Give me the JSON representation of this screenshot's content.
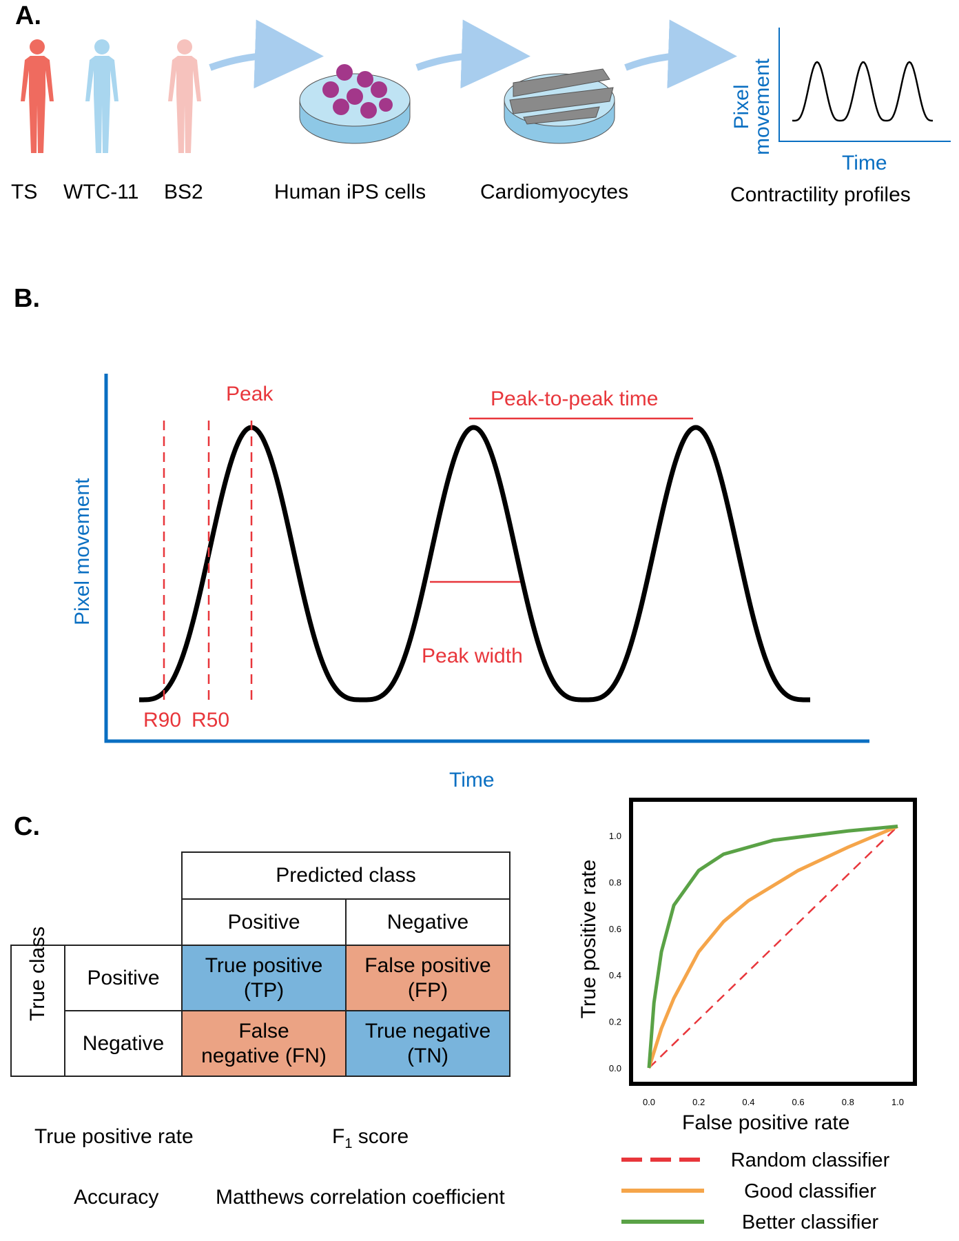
{
  "panelA": {
    "label": "A.",
    "donors": [
      "TS",
      "WTC-11",
      "BS2"
    ],
    "cells": "Human iPS cells",
    "cardio": "Cardiomyocytes",
    "profiles": "Contractility profiles",
    "mini_y": "Pixel movement",
    "mini_x": "Time"
  },
  "panelB": {
    "label": "B.",
    "ylabel": "Pixel movement",
    "xlabel": "Time",
    "peak": "Peak",
    "p2p": "Peak-to-peak time",
    "width": "Peak width",
    "r90": "R90",
    "r50": "R50"
  },
  "panelC": {
    "label": "C.",
    "table": {
      "predicted": "Predicted class",
      "true": "True class",
      "positive": "Positive",
      "negative": "Negative",
      "tp": [
        "True positive",
        "(TP)"
      ],
      "fp": [
        "False positive",
        "(FP)"
      ],
      "fn": [
        "False",
        "negative (FN)"
      ],
      "tn": [
        "True negative",
        "(TN)"
      ]
    },
    "metrics": {
      "tpr": "True positive rate",
      "f1": "F",
      "f1sub": "1",
      "f1rest": " score",
      "acc": "Accuracy",
      "mcc": "Matthews correlation coefficient"
    }
  },
  "chart_data": {
    "type": "line",
    "title": "",
    "xlabel": "False positive rate",
    "ylabel": "True positive rate",
    "xlim": [
      0,
      1
    ],
    "ylim": [
      0,
      1
    ],
    "xticks": [
      "0.0",
      "0.2",
      "0.4",
      "0.6",
      "0.8",
      "1.0"
    ],
    "yticks": [
      "0.0",
      "0.2",
      "0.4",
      "0.6",
      "0.8",
      "1.0"
    ],
    "series": [
      {
        "name": "Random classifier",
        "color": "#e8363b",
        "dash": true,
        "x": [
          0,
          1
        ],
        "y": [
          0,
          1.04
        ]
      },
      {
        "name": "Good classifier",
        "color": "#f5a54a",
        "x": [
          0,
          0.05,
          0.1,
          0.2,
          0.3,
          0.4,
          0.6,
          0.8,
          1.0
        ],
        "y": [
          0,
          0.17,
          0.3,
          0.5,
          0.63,
          0.72,
          0.85,
          0.95,
          1.04
        ]
      },
      {
        "name": "Better classifier",
        "color": "#5aa246",
        "x": [
          0,
          0.02,
          0.05,
          0.1,
          0.2,
          0.3,
          0.5,
          0.8,
          1.0
        ],
        "y": [
          0,
          0.28,
          0.5,
          0.7,
          0.85,
          0.92,
          0.98,
          1.02,
          1.04
        ]
      }
    ],
    "legend": "bottom"
  }
}
